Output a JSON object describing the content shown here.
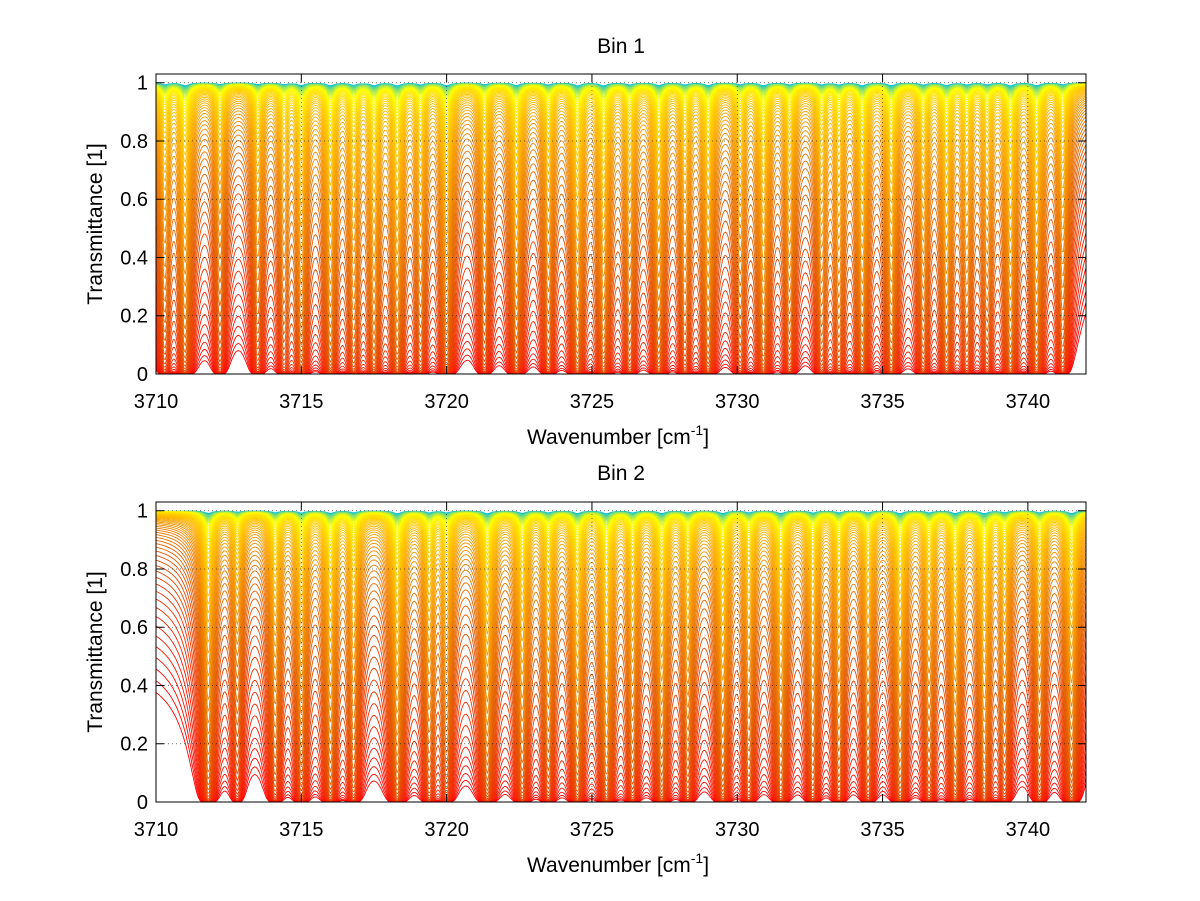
{
  "figure": {
    "background": "#ffffff"
  },
  "chart_data": [
    {
      "type": "line",
      "title": "Bin 1",
      "xlabel": "Wavenumber [cm",
      "xlabel_sup": "-1",
      "xlabel_end": "]",
      "ylabel": "Transmittance [1]",
      "xlim": [
        3710,
        3742
      ],
      "ylim": [
        0,
        1.03
      ],
      "x_ticks": [
        3710,
        3715,
        3720,
        3725,
        3730,
        3735,
        3740
      ],
      "x_tick_labels": [
        "3710",
        "3715",
        "3720",
        "3725",
        "3730",
        "3735",
        "3740"
      ],
      "y_ticks": [
        0,
        0.2,
        0.4,
        0.6,
        0.8,
        1
      ],
      "y_tick_labels": [
        "0",
        "0.2",
        "0.4",
        "0.6",
        "0.8",
        "1"
      ],
      "grid": true,
      "legend": "none",
      "n_curves": 70,
      "colormap": [
        "#00bfe6",
        "#ffff00",
        "#ffb400",
        "#e35a00",
        "#ff0000"
      ],
      "absorption_lines_cm1": [
        3710.3,
        3711.0,
        3712.2,
        3713.5,
        3714.4,
        3715.0,
        3716.0,
        3716.8,
        3717.5,
        3718.3,
        3719.1,
        3720.0,
        3721.3,
        3722.4,
        3723.5,
        3724.5,
        3725.4,
        3726.3,
        3727.3,
        3728.2,
        3729.0,
        3730.1,
        3730.9,
        3731.8,
        3732.9,
        3733.5,
        3734.3,
        3735.3,
        3736.4,
        3737.2,
        3737.9,
        3738.6,
        3739.4,
        3740.3,
        3741.2
      ],
      "line_depths": [
        0.6,
        0.95,
        0.5,
        0.55,
        0.5,
        0.8,
        0.9,
        0.7,
        0.85,
        0.95,
        0.6,
        0.9,
        0.55,
        0.85,
        0.6,
        0.95,
        0.95,
        0.6,
        0.85,
        0.6,
        0.85,
        0.55,
        0.9,
        0.6,
        0.6,
        0.6,
        0.9,
        0.9,
        0.65,
        0.8,
        0.6,
        0.55,
        0.95,
        0.9,
        0.6
      ]
    },
    {
      "type": "line",
      "title": "Bin 2",
      "xlabel": "Wavenumber [cm",
      "xlabel_sup": "-1",
      "xlabel_end": "]",
      "ylabel": "Transmittance [1]",
      "xlim": [
        3710,
        3742
      ],
      "ylim": [
        0,
        1.03
      ],
      "x_ticks": [
        3710,
        3715,
        3720,
        3725,
        3730,
        3735,
        3740
      ],
      "x_tick_labels": [
        "3710",
        "3715",
        "3720",
        "3725",
        "3730",
        "3735",
        "3740"
      ],
      "y_ticks": [
        0,
        0.2,
        0.4,
        0.6,
        0.8,
        1
      ],
      "y_tick_labels": [
        "0",
        "0.2",
        "0.4",
        "0.6",
        "0.8",
        "1"
      ],
      "grid": true,
      "legend": "none",
      "n_curves": 70,
      "colormap": [
        "#00bfe6",
        "#ffff00",
        "#ffb400",
        "#e35a00",
        "#ff0000"
      ],
      "absorption_lines_cm1": [
        3711.8,
        3712.8,
        3714.1,
        3715.0,
        3716.0,
        3716.8,
        3718.3,
        3719.4,
        3720.0,
        3721.4,
        3722.6,
        3723.5,
        3724.5,
        3725.5,
        3726.4,
        3727.4,
        3728.3,
        3729.5,
        3730.4,
        3731.5,
        3732.6,
        3733.5,
        3734.5,
        3735.6,
        3736.6,
        3737.5,
        3738.5,
        3739.2,
        3740.4,
        3741.5
      ],
      "line_depths": [
        0.85,
        0.4,
        0.6,
        0.65,
        0.8,
        0.6,
        0.95,
        0.6,
        0.6,
        0.95,
        0.8,
        0.6,
        0.85,
        0.95,
        0.6,
        0.85,
        0.6,
        0.85,
        0.6,
        0.85,
        0.65,
        0.6,
        0.6,
        0.9,
        0.6,
        0.85,
        0.9,
        0.55,
        0.6,
        0.9
      ]
    }
  ]
}
